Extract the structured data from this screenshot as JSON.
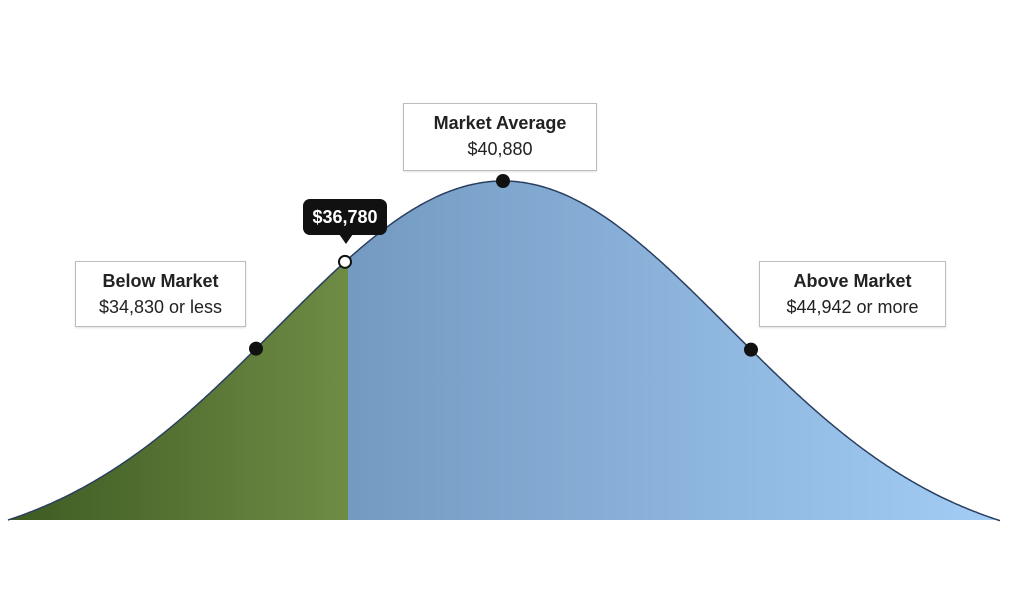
{
  "chart_data": {
    "type": "area",
    "distribution": "normal",
    "mean_label": {
      "title": "Market Average",
      "value": "$40,880"
    },
    "below_label": {
      "title": "Below Market",
      "value": "$34,830 or less"
    },
    "above_label": {
      "title": "Above Market",
      "value": "$44,942 or more"
    },
    "marker": {
      "value": "$36,780"
    },
    "colors": {
      "below_fill": "#5e7d3a",
      "curve_fill_left": "#5b7fa6",
      "curve_fill_right": "#a3cdf5",
      "outline": "#2a3f5f",
      "marker": "#111111"
    },
    "axes": false,
    "grid": false
  }
}
